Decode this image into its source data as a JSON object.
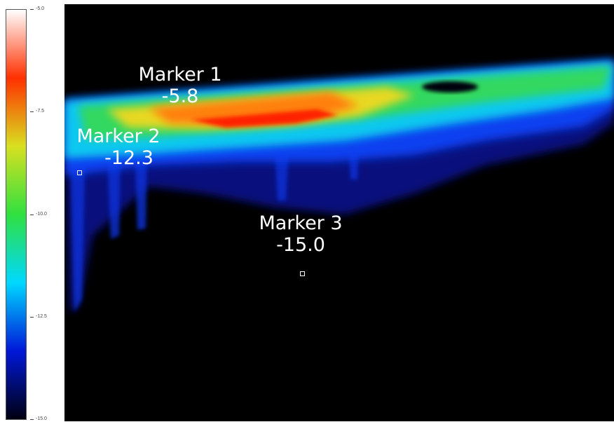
{
  "chart_data": {
    "type": "heatmap",
    "colorbar": {
      "range": [
        -15.0,
        -5.0
      ],
      "ticks": [
        "-5.0",
        "-7.5",
        "-10.0",
        "-12.5",
        "-15.0"
      ],
      "colormap": [
        "#000010",
        "#0018d8",
        "#00d8ff",
        "#30e040",
        "#d8e020",
        "#ff3000",
        "#ffffff"
      ]
    },
    "markers": [
      {
        "name": "Marker 1",
        "value": "-5.8"
      },
      {
        "name": "Marker 2",
        "value": "-12.3"
      },
      {
        "name": "Marker 3",
        "value": "-15.0"
      }
    ]
  },
  "colors": {
    "background": "#000000",
    "marker_text": "#ffffff"
  }
}
